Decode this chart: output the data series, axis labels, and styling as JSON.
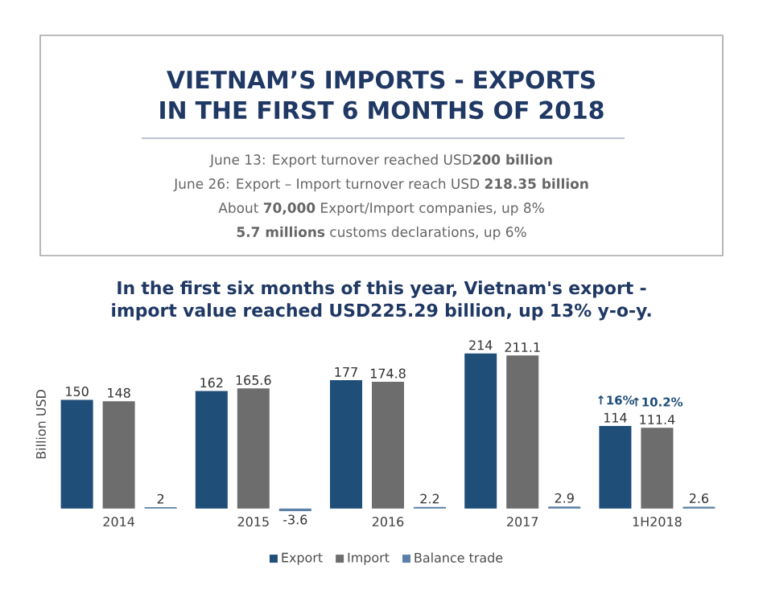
{
  "chart_data": {
    "type": "bar",
    "title": "VIETNAM’S IMPORTS - EXPORTS IN THE FIRST 6 MONTHS OF 2018",
    "subtitle": "In the first six months of this year, Vietnam's export - import value reached USD225.29 billion, up 13% y-o-y.",
    "ylabel": "Billion USD",
    "categories": [
      "2014",
      "2015",
      "2016",
      "2017",
      "1H2018"
    ],
    "series": [
      {
        "name": "Export",
        "color": "#1f4e79",
        "values": [
          150,
          162,
          177,
          214,
          114
        ]
      },
      {
        "name": "Import",
        "color": "#6d6d6d",
        "values": [
          148,
          165.6,
          174.8,
          211.1,
          111.4
        ]
      },
      {
        "name": "Balance trade",
        "color": "#5b7fa6",
        "values": [
          2,
          -3.6,
          2.2,
          2.9,
          2.6
        ]
      }
    ],
    "data_labels": true,
    "legend": "bottom",
    "annotations": [
      "June 13: Export turnover reached USD**200 billion**",
      "June 26: Export – Import turnover reach USD **218.35 billion**",
      "About **70,000** Export/Import companies, up 8%",
      "**5.7 millions** customs declarations, up 6%",
      {
        "text": "↑16%",
        "x": "1H2018",
        "y": 114
      },
      {
        "text": "↑10.2%",
        "x": "1H2018",
        "y": 111.4
      }
    ]
  }
}
